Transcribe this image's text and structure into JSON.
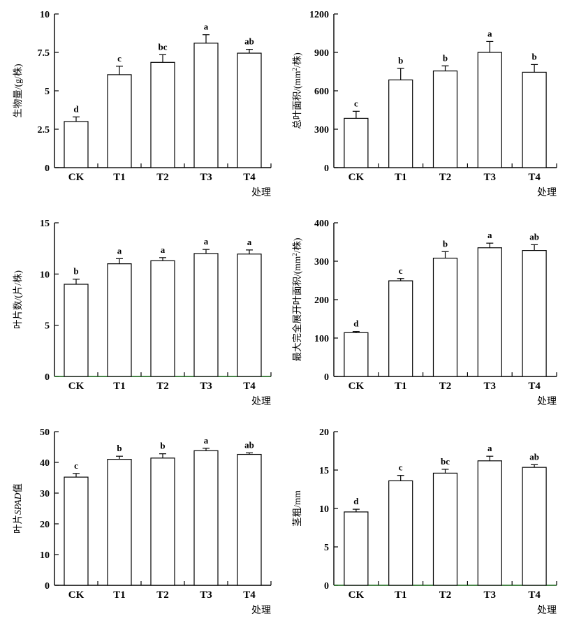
{
  "page": {
    "background": "#ffffff",
    "description": "Six-panel bar chart figure comparing treatments"
  },
  "shared": {
    "x_axis_title": "处理",
    "categories": [
      "CK",
      "T1",
      "T2",
      "T3",
      "T4"
    ]
  },
  "style": {
    "bar_fill": "#ffffff",
    "bar_stroke": "#000000",
    "axis_color": "#000000",
    "green_axis_color": "#0a5a0a",
    "error_bar_color": "#000000",
    "text_color": "#000000"
  },
  "chart_data": [
    {
      "id": "biomass",
      "type": "bar",
      "title": "",
      "ylabel": "生物量/(g/株)",
      "ylabel_segments": [
        {
          "t": "生物量/(g/株)"
        }
      ],
      "xlabel": "处理",
      "categories": [
        "CK",
        "T1",
        "T2",
        "T3",
        "T4"
      ],
      "values": [
        3.0,
        6.05,
        6.85,
        8.1,
        7.45
      ],
      "errors": [
        0.3,
        0.55,
        0.5,
        0.55,
        0.25
      ],
      "sig_letters": [
        "d",
        "c",
        "bc",
        "a",
        "ab"
      ],
      "ylim": [
        0,
        10
      ],
      "yticks": [
        0,
        2.5,
        5,
        7.5,
        10
      ],
      "x_axis_color": "#000000",
      "grid": false,
      "legend": "none"
    },
    {
      "id": "total-leaf-area",
      "type": "bar",
      "title": "",
      "ylabel": "总叶面积/(mm²/株)",
      "ylabel_segments": [
        {
          "t": "总叶面积/(mm"
        },
        {
          "t": "2",
          "sup": true
        },
        {
          "t": "/株)"
        }
      ],
      "xlabel": "处理",
      "categories": [
        "CK",
        "T1",
        "T2",
        "T3",
        "T4"
      ],
      "values": [
        385,
        685,
        755,
        900,
        745
      ],
      "errors": [
        55,
        90,
        40,
        85,
        60
      ],
      "sig_letters": [
        "c",
        "b",
        "b",
        "a",
        "b"
      ],
      "ylim": [
        0,
        1200
      ],
      "yticks": [
        0,
        300,
        600,
        900,
        1200
      ],
      "x_axis_color": "#000000",
      "grid": false,
      "legend": "none"
    },
    {
      "id": "leaf-count",
      "type": "bar",
      "title": "",
      "ylabel": "叶片数/(片/株)",
      "ylabel_segments": [
        {
          "t": "叶片数/(片/株)"
        }
      ],
      "xlabel": "处理",
      "categories": [
        "CK",
        "T1",
        "T2",
        "T3",
        "T4"
      ],
      "values": [
        9.0,
        11.0,
        11.3,
        12.0,
        11.95
      ],
      "errors": [
        0.5,
        0.5,
        0.3,
        0.4,
        0.4
      ],
      "sig_letters": [
        "b",
        "a",
        "a",
        "a",
        "a"
      ],
      "ylim": [
        0,
        15
      ],
      "yticks": [
        0,
        5,
        10,
        15
      ],
      "x_axis_color": "#0a5a0a",
      "grid": false,
      "legend": "none"
    },
    {
      "id": "max-expanded-leaf-area",
      "type": "bar",
      "title": "",
      "ylabel": "最大完全展开叶面积/(mm²/株)",
      "ylabel_segments": [
        {
          "t": "最大完全展开叶面积/(mm"
        },
        {
          "t": "2",
          "sup": true
        },
        {
          "t": "/株)"
        }
      ],
      "xlabel": "处理",
      "categories": [
        "CK",
        "T1",
        "T2",
        "T3",
        "T4"
      ],
      "values": [
        114,
        249,
        308,
        335,
        328
      ],
      "errors": [
        3,
        6,
        17,
        12,
        15
      ],
      "sig_letters": [
        "d",
        "c",
        "b",
        "a",
        "ab"
      ],
      "ylim": [
        0,
        400
      ],
      "yticks": [
        0,
        100,
        200,
        300,
        400
      ],
      "x_axis_color": "#000000",
      "grid": false,
      "legend": "none"
    },
    {
      "id": "leaf-spad",
      "type": "bar",
      "title": "",
      "ylabel": "叶片SPAD值",
      "ylabel_segments": [
        {
          "t": "叶片"
        },
        {
          "t": "SPAD",
          "italic": true
        },
        {
          "t": "值"
        }
      ],
      "xlabel": "处理",
      "categories": [
        "CK",
        "T1",
        "T2",
        "T3",
        "T4"
      ],
      "values": [
        35.2,
        41.0,
        41.4,
        43.8,
        42.6
      ],
      "errors": [
        1.2,
        1.0,
        1.4,
        0.8,
        0.5
      ],
      "sig_letters": [
        "c",
        "b",
        "b",
        "a",
        "ab"
      ],
      "ylim": [
        0,
        50
      ],
      "yticks": [
        0,
        10,
        20,
        30,
        40,
        50
      ],
      "x_axis_color": "#000000",
      "grid": false,
      "legend": "none"
    },
    {
      "id": "stem-diameter",
      "type": "bar",
      "title": "",
      "ylabel": "茎粗/mm",
      "ylabel_segments": [
        {
          "t": "茎粗/mm"
        }
      ],
      "xlabel": "处理",
      "categories": [
        "CK",
        "T1",
        "T2",
        "T3",
        "T4"
      ],
      "values": [
        9.55,
        13.6,
        14.6,
        16.2,
        15.35
      ],
      "errors": [
        0.35,
        0.7,
        0.5,
        0.6,
        0.35
      ],
      "sig_letters": [
        "d",
        "c",
        "bc",
        "a",
        "ab"
      ],
      "ylim": [
        0,
        20
      ],
      "yticks": [
        0,
        5,
        10,
        15,
        20
      ],
      "x_axis_color": "#0a5a0a",
      "grid": false,
      "legend": "none"
    }
  ]
}
